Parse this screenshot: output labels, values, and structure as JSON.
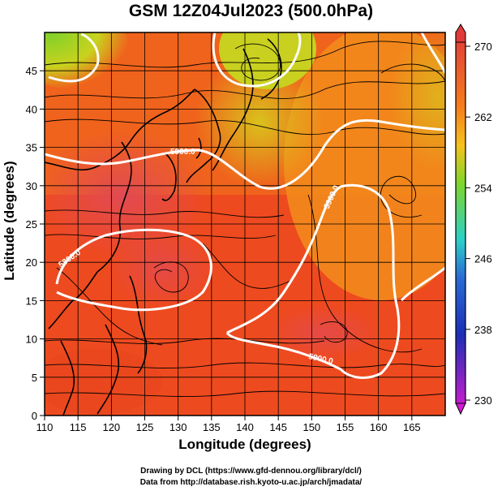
{
  "title": "GSM 12Z04Jul2023 (500.0hPa)",
  "x_axis": {
    "label": "Longitude (degrees)",
    "ticks": [
      "110",
      "115",
      "120",
      "125",
      "130",
      "135",
      "140",
      "145",
      "150",
      "155",
      "160",
      "165"
    ]
  },
  "y_axis": {
    "label": "Latitude  (degrees)",
    "ticks": [
      "0",
      "5",
      "10",
      "15",
      "20",
      "25",
      "30",
      "35",
      "40",
      "45"
    ]
  },
  "colorbar": {
    "ticks": [
      "270",
      "262",
      "254",
      "246",
      "238",
      "230"
    ],
    "colors": [
      "#e13a3a",
      "#f57f1c",
      "#f6c21d",
      "#7fd62a",
      "#2bd0c8",
      "#2a6bd6",
      "#1b2fb5",
      "#c21bc8"
    ]
  },
  "contours": [
    {
      "label": "5900.0"
    },
    {
      "label": "5800.0"
    },
    {
      "label": "5900.0"
    },
    {
      "label": "5900.0"
    }
  ],
  "credits": [
    "Drawing by DCL (https://www.gfd-dennou.org/library/dcl/)",
    "Data from http://database.rish.kyoto-u.ac.jp/arch/jmadata/"
  ]
}
